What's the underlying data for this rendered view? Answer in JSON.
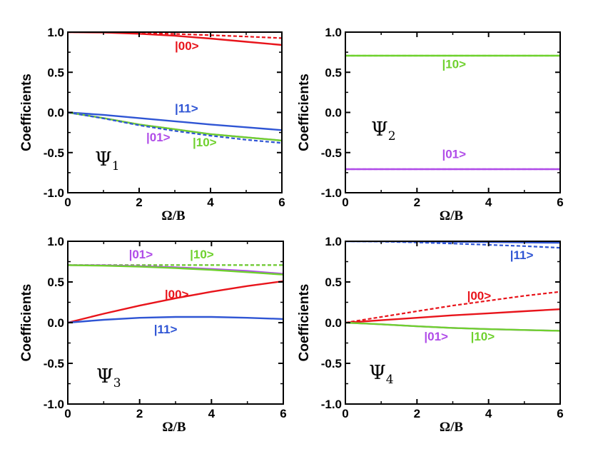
{
  "colors": {
    "state_00": "#e8141b",
    "state_11": "#2f55d4",
    "state_01": "#b04ce8",
    "state_10": "#6fd12e"
  },
  "chart_data": [
    {
      "type": "line",
      "label": "Ψ",
      "label_sub": "1",
      "xlabel": "Ω/B",
      "ylabel": "Coefficients",
      "xlim": [
        0,
        6
      ],
      "ylim": [
        -1,
        1
      ],
      "xticks": [
        "0",
        "2",
        "4",
        "6"
      ],
      "yticks": [
        "-1.0",
        "-0.5",
        "0.0",
        "0.5",
        "1.0"
      ],
      "series": [
        {
          "state": "00",
          "style": "solid",
          "x": [
            0,
            1,
            2,
            3,
            4,
            5,
            6
          ],
          "y": [
            1.0,
            0.995,
            0.98,
            0.955,
            0.92,
            0.88,
            0.84
          ]
        },
        {
          "state": "00",
          "style": "dashed",
          "x": [
            0,
            1,
            2,
            3,
            4,
            5,
            6
          ],
          "y": [
            1.0,
            0.998,
            0.99,
            0.978,
            0.962,
            0.945,
            0.925
          ]
        },
        {
          "state": "11",
          "style": "solid",
          "x": [
            0,
            1,
            2,
            3,
            4,
            5,
            6
          ],
          "y": [
            0.0,
            -0.03,
            -0.07,
            -0.11,
            -0.15,
            -0.185,
            -0.22
          ]
        },
        {
          "state": "01",
          "style": "solid",
          "x": [
            0,
            1,
            2,
            3,
            4,
            5,
            6
          ],
          "y": [
            0.0,
            -0.07,
            -0.15,
            -0.21,
            -0.27,
            -0.31,
            -0.35
          ]
        },
        {
          "state": "10",
          "style": "solid",
          "x": [
            0,
            1,
            2,
            3,
            4,
            5,
            6
          ],
          "y": [
            0.0,
            -0.07,
            -0.15,
            -0.21,
            -0.27,
            -0.31,
            -0.35
          ]
        },
        {
          "state": "11",
          "style": "dashed",
          "x": [
            0,
            1,
            2,
            3,
            4,
            5,
            6
          ],
          "y": [
            0.0,
            -0.075,
            -0.16,
            -0.23,
            -0.29,
            -0.34,
            -0.38
          ]
        }
      ],
      "annotations": [
        {
          "text": "|00>",
          "state": "00",
          "x": 3.0,
          "y": 0.78
        },
        {
          "text": "|11>",
          "state": "11",
          "x": 3.0,
          "y": 0.0
        },
        {
          "text": "|01>",
          "state": "01",
          "x": 2.2,
          "y": -0.36
        },
        {
          "text": "|10>",
          "state": "10",
          "x": 3.5,
          "y": -0.42
        }
      ]
    },
    {
      "type": "line",
      "label": "Ψ",
      "label_sub": "2",
      "xlabel": "Ω/B",
      "ylabel": "Coefficients",
      "xlim": [
        0,
        6
      ],
      "ylim": [
        -1,
        1
      ],
      "xticks": [
        "0",
        "2",
        "4",
        "6"
      ],
      "yticks": [
        "-1.0",
        "-0.5",
        "0.0",
        "0.5",
        "1.0"
      ],
      "series": [
        {
          "state": "10",
          "style": "solid",
          "x": [
            0,
            6
          ],
          "y": [
            0.707,
            0.707
          ]
        },
        {
          "state": "10",
          "style": "dashed",
          "x": [
            0,
            6
          ],
          "y": [
            0.707,
            0.707
          ]
        },
        {
          "state": "01",
          "style": "solid",
          "x": [
            0,
            6
          ],
          "y": [
            -0.707,
            -0.707
          ]
        },
        {
          "state": "01",
          "style": "dashed",
          "x": [
            0,
            6
          ],
          "y": [
            -0.707,
            -0.707
          ]
        }
      ],
      "annotations": [
        {
          "text": "|10>",
          "state": "10",
          "x": 2.7,
          "y": 0.55
        },
        {
          "text": "|01>",
          "state": "01",
          "x": 2.7,
          "y": -0.57
        }
      ]
    },
    {
      "type": "line",
      "label": "Ψ",
      "label_sub": "3",
      "xlabel": "Ω/B",
      "ylabel": "Coefficients",
      "xlim": [
        0,
        6
      ],
      "ylim": [
        -1,
        1
      ],
      "xticks": [
        "0",
        "2",
        "4",
        "6"
      ],
      "yticks": [
        "-1.0",
        "-0.5",
        "0.0",
        "0.5",
        "1.0"
      ],
      "series": [
        {
          "state": "01",
          "style": "dashed",
          "x": [
            0,
            6
          ],
          "y": [
            0.707,
            0.707
          ]
        },
        {
          "state": "10",
          "style": "dashed",
          "x": [
            0,
            6
          ],
          "y": [
            0.707,
            0.707
          ]
        },
        {
          "state": "01",
          "style": "solid",
          "x": [
            0,
            1,
            2,
            3,
            4,
            5,
            6
          ],
          "y": [
            0.707,
            0.704,
            0.695,
            0.68,
            0.66,
            0.635,
            0.6
          ]
        },
        {
          "state": "10",
          "style": "solid",
          "x": [
            0,
            1,
            2,
            3,
            4,
            5,
            6
          ],
          "y": [
            0.707,
            0.7,
            0.688,
            0.67,
            0.648,
            0.62,
            0.59
          ]
        },
        {
          "state": "00",
          "style": "solid",
          "x": [
            0,
            1,
            2,
            3,
            4,
            5,
            6
          ],
          "y": [
            0.0,
            0.11,
            0.21,
            0.3,
            0.38,
            0.45,
            0.51
          ]
        },
        {
          "state": "11",
          "style": "solid",
          "x": [
            0,
            1,
            2,
            3,
            4,
            5,
            6
          ],
          "y": [
            0.0,
            0.035,
            0.06,
            0.07,
            0.07,
            0.06,
            0.045
          ]
        }
      ],
      "annotations": [
        {
          "text": "|01>",
          "state": "01",
          "x": 1.7,
          "y": 0.79
        },
        {
          "text": "|10>",
          "state": "10",
          "x": 3.4,
          "y": 0.79
        },
        {
          "text": "|00>",
          "state": "00",
          "x": 2.7,
          "y": 0.3
        },
        {
          "text": "|11>",
          "state": "11",
          "x": 2.4,
          "y": -0.13
        }
      ]
    },
    {
      "type": "line",
      "label": "Ψ",
      "label_sub": "4",
      "xlabel": "Ω/B",
      "ylabel": "Coefficients",
      "xlim": [
        0,
        6
      ],
      "ylim": [
        -1,
        1
      ],
      "xticks": [
        "0",
        "2",
        "4",
        "6"
      ],
      "yticks": [
        "-1.0",
        "-0.5",
        "0.0",
        "0.5",
        "1.0"
      ],
      "series": [
        {
          "state": "11",
          "style": "solid",
          "x": [
            0,
            1,
            2,
            3,
            4,
            5,
            6
          ],
          "y": [
            1.0,
            0.999,
            0.997,
            0.994,
            0.99,
            0.986,
            0.982
          ]
        },
        {
          "state": "11",
          "style": "dashed",
          "x": [
            0,
            1,
            2,
            3,
            4,
            5,
            6
          ],
          "y": [
            1.0,
            0.996,
            0.986,
            0.972,
            0.956,
            0.94,
            0.92
          ]
        },
        {
          "state": "00",
          "style": "dashed",
          "x": [
            0,
            1,
            2,
            3,
            4,
            5,
            6
          ],
          "y": [
            0.0,
            0.07,
            0.14,
            0.21,
            0.27,
            0.33,
            0.38
          ]
        },
        {
          "state": "00",
          "style": "solid",
          "x": [
            0,
            1,
            2,
            3,
            4,
            5,
            6
          ],
          "y": [
            0.0,
            0.03,
            0.06,
            0.09,
            0.115,
            0.14,
            0.165
          ]
        },
        {
          "state": "01",
          "style": "solid",
          "x": [
            0,
            1,
            2,
            3,
            4,
            5,
            6
          ],
          "y": [
            0.0,
            -0.02,
            -0.045,
            -0.065,
            -0.08,
            -0.09,
            -0.1
          ]
        },
        {
          "state": "10",
          "style": "solid",
          "x": [
            0,
            1,
            2,
            3,
            4,
            5,
            6
          ],
          "y": [
            0.0,
            -0.02,
            -0.045,
            -0.065,
            -0.08,
            -0.09,
            -0.1
          ]
        }
      ],
      "annotations": [
        {
          "text": "|11>",
          "state": "11",
          "x": 4.6,
          "y": 0.78
        },
        {
          "text": "|00>",
          "state": "00",
          "x": 3.4,
          "y": 0.28
        },
        {
          "text": "|01>",
          "state": "01",
          "x": 2.2,
          "y": -0.22
        },
        {
          "text": "|10>",
          "state": "10",
          "x": 3.5,
          "y": -0.22
        }
      ]
    }
  ]
}
